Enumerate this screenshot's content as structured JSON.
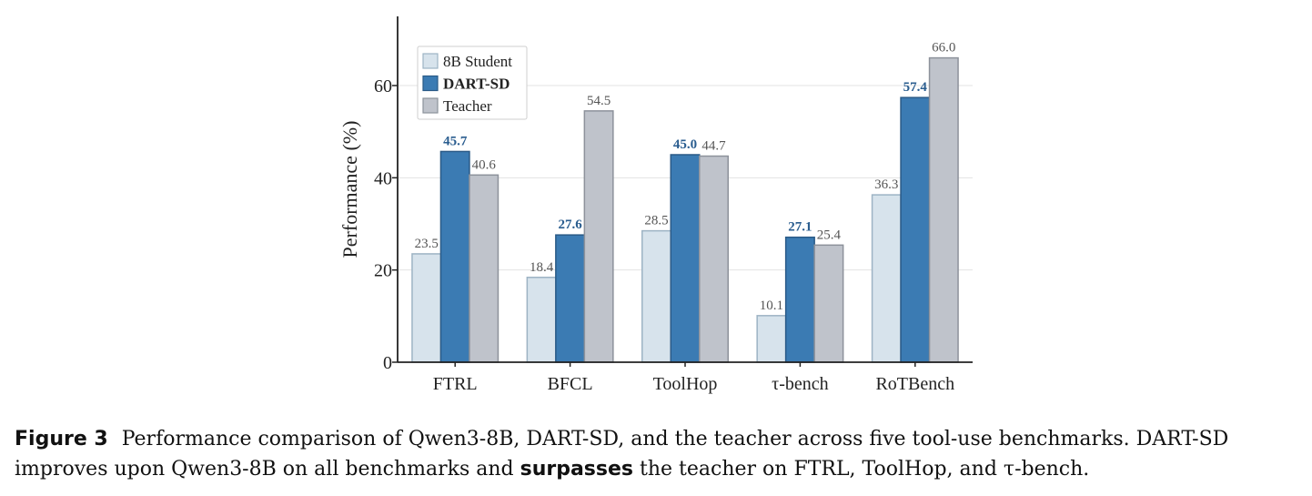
{
  "chart_data": {
    "type": "bar",
    "categories": [
      "FTRL",
      "BFCL",
      "ToolHop",
      "τ-bench",
      "RoTBench"
    ],
    "series": [
      {
        "name": "8B Student",
        "values": [
          23.5,
          18.4,
          28.5,
          10.1,
          36.3
        ],
        "color": "#d7e3ec",
        "stroke": "#9db3c4",
        "label_bold": false
      },
      {
        "name": "DART-SD",
        "values": [
          45.7,
          27.6,
          45.0,
          27.1,
          57.4
        ],
        "color": "#3b7bb3",
        "stroke": "#2a5a87",
        "label_bold": true
      },
      {
        "name": "Teacher",
        "values": [
          40.6,
          54.5,
          44.7,
          25.4,
          66.0
        ],
        "color": "#bfc3cb",
        "stroke": "#8d929b",
        "label_bold": false
      }
    ],
    "ylabel": "Performance (%)",
    "xlabel": "",
    "ylim": [
      0,
      75
    ],
    "yticks": [
      0,
      20,
      40,
      60
    ],
    "grid": true,
    "legend_position": "top-left"
  },
  "caption": {
    "label": "Figure 3",
    "text_part1": "Performance comparison of Qwen3-8B, DART-SD, and the teacher across five tool-use benchmarks. DART-SD improves upon Qwen3-8B on all benchmarks and",
    "emphasis": "surpasses",
    "text_part2": "the teacher on FTRL, ToolHop, and τ-bench."
  }
}
